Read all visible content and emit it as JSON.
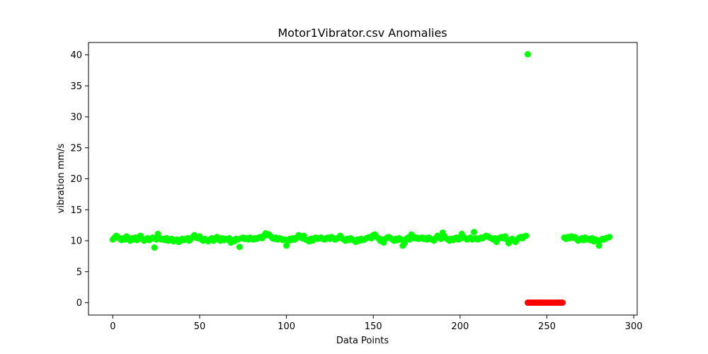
{
  "chart_data": {
    "type": "scatter",
    "title": "Motor1Vibrator.csv Anomalies",
    "xlabel": "Data Points",
    "ylabel": "vibration mm/s",
    "xlim": [
      -14,
      302
    ],
    "ylim": [
      -2,
      42
    ],
    "xticks": [
      0,
      50,
      100,
      150,
      200,
      250,
      300
    ],
    "yticks": [
      0,
      5,
      10,
      15,
      20,
      25,
      30,
      35,
      40
    ],
    "grid": false,
    "colors": {
      "normal": "#00ff00",
      "anomaly": "#ff0000"
    },
    "series": [
      {
        "role": "normal",
        "color": "#00ff00",
        "points": [
          [
            0,
            10.2
          ],
          [
            1,
            10.5
          ],
          [
            2,
            10.8
          ],
          [
            3,
            10.6
          ],
          [
            4,
            10.3
          ],
          [
            5,
            10.1
          ],
          [
            6,
            10.4
          ],
          [
            7,
            10.2
          ],
          [
            8,
            10.7
          ],
          [
            9,
            10.3
          ],
          [
            10,
            10.0
          ],
          [
            11,
            10.4
          ],
          [
            12,
            10.2
          ],
          [
            13,
            10.5
          ],
          [
            14,
            10.1
          ],
          [
            15,
            10.6
          ],
          [
            16,
            10.8
          ],
          [
            17,
            10.3
          ],
          [
            18,
            10.0
          ],
          [
            19,
            10.2
          ],
          [
            20,
            10.4
          ],
          [
            21,
            10.1
          ],
          [
            22,
            10.3
          ],
          [
            23,
            10.5
          ],
          [
            24,
            8.9
          ],
          [
            25,
            10.2
          ],
          [
            26,
            11.1
          ],
          [
            27,
            10.4
          ],
          [
            28,
            10.2
          ],
          [
            29,
            10.3
          ],
          [
            30,
            10.1
          ],
          [
            31,
            10.4
          ],
          [
            32,
            10.0
          ],
          [
            33,
            10.2
          ],
          [
            34,
            10.3
          ],
          [
            35,
            9.9
          ],
          [
            36,
            10.1
          ],
          [
            37,
            10.2
          ],
          [
            38,
            9.8
          ],
          [
            39,
            10.0
          ],
          [
            40,
            10.3
          ],
          [
            41,
            10.1
          ],
          [
            42,
            10.2
          ],
          [
            43,
            10.4
          ],
          [
            44,
            10.0
          ],
          [
            45,
            10.3
          ],
          [
            46,
            10.6
          ],
          [
            47,
            10.9
          ],
          [
            48,
            10.5
          ],
          [
            49,
            10.4
          ],
          [
            50,
            10.7
          ],
          [
            51,
            10.2
          ],
          [
            52,
            10.0
          ],
          [
            53,
            10.3
          ],
          [
            54,
            10.1
          ],
          [
            55,
            9.9
          ],
          [
            56,
            10.2
          ],
          [
            57,
            10.4
          ],
          [
            58,
            10.0
          ],
          [
            59,
            10.3
          ],
          [
            60,
            10.6
          ],
          [
            61,
            10.2
          ],
          [
            62,
            10.0
          ],
          [
            63,
            10.4
          ],
          [
            64,
            10.1
          ],
          [
            65,
            10.3
          ],
          [
            66,
            10.2
          ],
          [
            67,
            10.4
          ],
          [
            68,
            9.7
          ],
          [
            69,
            10.1
          ],
          [
            70,
            9.9
          ],
          [
            71,
            10.3
          ],
          [
            72,
            10.2
          ],
          [
            73,
            9.0
          ],
          [
            74,
            10.4
          ],
          [
            75,
            10.5
          ],
          [
            76,
            10.3
          ],
          [
            77,
            10.4
          ],
          [
            78,
            10.2
          ],
          [
            79,
            10.5
          ],
          [
            80,
            10.3
          ],
          [
            81,
            10.2
          ],
          [
            82,
            10.4
          ],
          [
            83,
            10.3
          ],
          [
            84,
            10.5
          ],
          [
            85,
            10.6
          ],
          [
            86,
            10.4
          ],
          [
            87,
            10.8
          ],
          [
            88,
            11.2
          ],
          [
            89,
            10.9
          ],
          [
            90,
            11.0
          ],
          [
            91,
            10.7
          ],
          [
            92,
            10.4
          ],
          [
            93,
            10.3
          ],
          [
            94,
            10.5
          ],
          [
            95,
            10.2
          ],
          [
            96,
            10.4
          ],
          [
            97,
            10.3
          ],
          [
            98,
            10.1
          ],
          [
            99,
            10.2
          ],
          [
            100,
            9.2
          ],
          [
            101,
            10.0
          ],
          [
            102,
            10.3
          ],
          [
            103,
            10.1
          ],
          [
            104,
            10.4
          ],
          [
            105,
            10.2
          ],
          [
            106,
            10.5
          ],
          [
            107,
            10.9
          ],
          [
            108,
            10.6
          ],
          [
            109,
            10.4
          ],
          [
            110,
            10.8
          ],
          [
            111,
            10.2
          ],
          [
            112,
            10.1
          ],
          [
            113,
            9.9
          ],
          [
            114,
            10.3
          ],
          [
            115,
            10.0
          ],
          [
            116,
            10.4
          ],
          [
            117,
            10.5
          ],
          [
            118,
            10.3
          ],
          [
            119,
            10.4
          ],
          [
            120,
            10.5
          ],
          [
            121,
            10.3
          ],
          [
            122,
            10.2
          ],
          [
            123,
            10.4
          ],
          [
            124,
            10.5
          ],
          [
            125,
            10.3
          ],
          [
            126,
            10.6
          ],
          [
            127,
            10.4
          ],
          [
            128,
            10.2
          ],
          [
            129,
            10.3
          ],
          [
            130,
            10.5
          ],
          [
            131,
            10.8
          ],
          [
            132,
            10.4
          ],
          [
            133,
            10.2
          ],
          [
            134,
            10.0
          ],
          [
            135,
            10.3
          ],
          [
            136,
            10.1
          ],
          [
            137,
            10.4
          ],
          [
            138,
            10.2
          ],
          [
            139,
            10.0
          ],
          [
            140,
            9.8
          ],
          [
            141,
            10.2
          ],
          [
            142,
            10.0
          ],
          [
            143,
            10.3
          ],
          [
            144,
            10.1
          ],
          [
            145,
            10.2
          ],
          [
            146,
            10.4
          ],
          [
            147,
            10.5
          ],
          [
            148,
            10.6
          ],
          [
            149,
            10.4
          ],
          [
            150,
            10.9
          ],
          [
            151,
            11.0
          ],
          [
            152,
            10.6
          ],
          [
            153,
            10.4
          ],
          [
            154,
            10.0
          ],
          [
            155,
            10.2
          ],
          [
            156,
            9.7
          ],
          [
            157,
            10.3
          ],
          [
            158,
            10.5
          ],
          [
            159,
            10.6
          ],
          [
            160,
            10.4
          ],
          [
            161,
            10.2
          ],
          [
            162,
            10.0
          ],
          [
            163,
            10.3
          ],
          [
            164,
            10.1
          ],
          [
            165,
            10.4
          ],
          [
            166,
            10.2
          ],
          [
            167,
            9.2
          ],
          [
            168,
            9.6
          ],
          [
            169,
            10.3
          ],
          [
            170,
            10.5
          ],
          [
            171,
            10.2
          ],
          [
            172,
            11.0
          ],
          [
            173,
            10.7
          ],
          [
            174,
            10.4
          ],
          [
            175,
            10.5
          ],
          [
            176,
            10.3
          ],
          [
            177,
            10.4
          ],
          [
            178,
            10.5
          ],
          [
            179,
            10.3
          ],
          [
            180,
            10.4
          ],
          [
            181,
            10.2
          ],
          [
            182,
            10.5
          ],
          [
            183,
            10.3
          ],
          [
            184,
            10.2
          ],
          [
            185,
            10.0
          ],
          [
            186,
            10.4
          ],
          [
            187,
            10.8
          ],
          [
            188,
            10.6
          ],
          [
            189,
            10.3
          ],
          [
            190,
            11.3
          ],
          [
            191,
            10.7
          ],
          [
            192,
            10.4
          ],
          [
            193,
            10.2
          ],
          [
            194,
            10.0
          ],
          [
            195,
            10.3
          ],
          [
            196,
            10.1
          ],
          [
            197,
            10.4
          ],
          [
            198,
            10.5
          ],
          [
            199,
            10.2
          ],
          [
            200,
            10.3
          ],
          [
            201,
            11.1
          ],
          [
            202,
            10.6
          ],
          [
            203,
            10.4
          ],
          [
            204,
            10.2
          ],
          [
            205,
            10.3
          ],
          [
            206,
            10.5
          ],
          [
            207,
            10.2
          ],
          [
            208,
            11.4
          ],
          [
            209,
            10.4
          ],
          [
            210,
            10.2
          ],
          [
            211,
            10.3
          ],
          [
            212,
            10.5
          ],
          [
            213,
            10.4
          ],
          [
            214,
            10.6
          ],
          [
            215,
            10.8
          ],
          [
            216,
            10.7
          ],
          [
            217,
            10.5
          ],
          [
            218,
            10.4
          ],
          [
            219,
            10.2
          ],
          [
            220,
            10.4
          ],
          [
            221,
            9.8
          ],
          [
            222,
            10.3
          ],
          [
            223,
            10.5
          ],
          [
            224,
            10.6
          ],
          [
            225,
            10.4
          ],
          [
            226,
            10.7
          ],
          [
            227,
            10.2
          ],
          [
            228,
            9.6
          ],
          [
            229,
            10.0
          ],
          [
            230,
            10.3
          ],
          [
            231,
            10.1
          ],
          [
            232,
            9.8
          ],
          [
            233,
            10.2
          ],
          [
            234,
            10.5
          ],
          [
            235,
            10.6
          ],
          [
            236,
            10.4
          ],
          [
            237,
            10.7
          ],
          [
            238,
            10.8
          ],
          [
            239,
            40.1
          ],
          [
            260,
            10.5
          ],
          [
            261,
            10.3
          ],
          [
            262,
            10.6
          ],
          [
            263,
            10.4
          ],
          [
            264,
            10.7
          ],
          [
            265,
            10.5
          ],
          [
            266,
            10.6
          ],
          [
            267,
            10.3
          ],
          [
            268,
            10.0
          ],
          [
            269,
            10.2
          ],
          [
            270,
            10.4
          ],
          [
            271,
            10.1
          ],
          [
            272,
            10.5
          ],
          [
            273,
            10.2
          ],
          [
            274,
            10.3
          ],
          [
            275,
            10.1
          ],
          [
            276,
            10.4
          ],
          [
            277,
            9.9
          ],
          [
            278,
            10.2
          ],
          [
            279,
            10.0
          ],
          [
            280,
            9.2
          ],
          [
            281,
            10.1
          ],
          [
            282,
            10.3
          ],
          [
            283,
            10.2
          ],
          [
            284,
            10.4
          ],
          [
            285,
            10.5
          ],
          [
            286,
            10.6
          ]
        ]
      },
      {
        "role": "anomaly",
        "color": "#ff0000",
        "points": [
          [
            239,
            0
          ],
          [
            240,
            0
          ],
          [
            241,
            0
          ],
          [
            242,
            0
          ],
          [
            243,
            0
          ],
          [
            244,
            0
          ],
          [
            245,
            0
          ],
          [
            246,
            0
          ],
          [
            247,
            0
          ],
          [
            248,
            0
          ],
          [
            249,
            0
          ],
          [
            250,
            0
          ],
          [
            251,
            0
          ],
          [
            252,
            0
          ],
          [
            253,
            0
          ],
          [
            254,
            0
          ],
          [
            255,
            0
          ],
          [
            256,
            0
          ],
          [
            257,
            0
          ],
          [
            258,
            0
          ],
          [
            259,
            0
          ]
        ]
      }
    ]
  }
}
